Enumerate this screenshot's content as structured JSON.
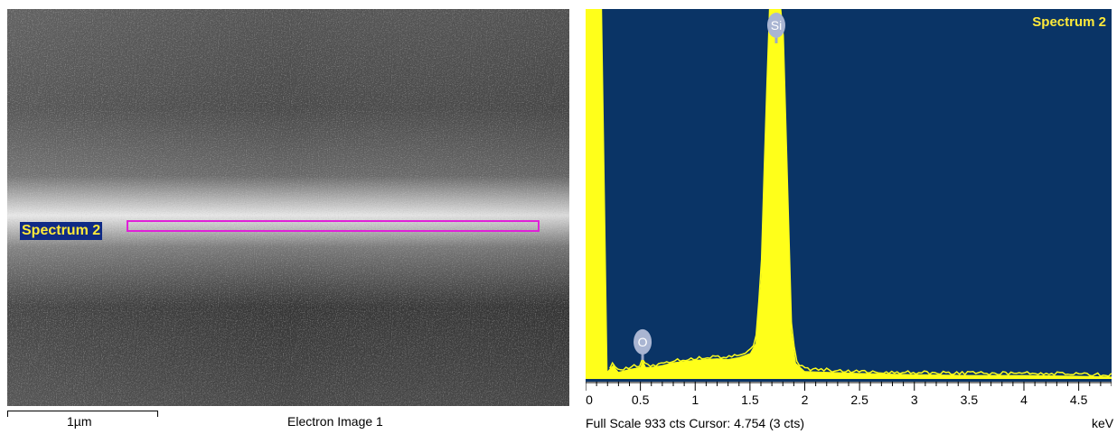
{
  "sem_image": {
    "spectrum_label": "Spectrum 2",
    "scale_bar_label": "1µm",
    "caption": "Electron Image 1",
    "region_color": "#e020d8",
    "label_bg_color": "#0f2a85",
    "label_text_color": "#ffea3a"
  },
  "spectrum": {
    "title": "Spectrum 2",
    "status": "Full Scale 933 cts Cursor: 4.754  (3 cts)",
    "unit": "keV",
    "background_color": "#0a3466",
    "fill_color": "#ffff1a",
    "peaks": [
      {
        "element": "Si",
        "energy_kev": 1.74
      },
      {
        "element": "O",
        "energy_kev": 0.52
      }
    ]
  },
  "chart_data": {
    "type": "area",
    "title": "Spectrum 2",
    "xlabel": "keV",
    "ylabel": "",
    "xlim": [
      0,
      4.8
    ],
    "ylim": [
      0,
      933
    ],
    "x_ticks": [
      "0",
      "0.5",
      "1",
      "1.5",
      "2",
      "2.5",
      "3",
      "3.5",
      "4",
      "4.5"
    ],
    "x": [
      0.0,
      0.1,
      0.15,
      0.2,
      0.25,
      0.3,
      0.4,
      0.5,
      0.52,
      0.55,
      0.6,
      0.7,
      0.8,
      0.9,
      1.0,
      1.1,
      1.2,
      1.3,
      1.4,
      1.5,
      1.55,
      1.6,
      1.65,
      1.68,
      1.7,
      1.74,
      1.78,
      1.8,
      1.84,
      1.88,
      1.92,
      2.0,
      2.2,
      2.5,
      3.0,
      3.5,
      4.0,
      4.5,
      4.8
    ],
    "values": [
      933,
      933,
      933,
      20,
      35,
      18,
      25,
      30,
      48,
      30,
      30,
      35,
      42,
      45,
      48,
      50,
      52,
      50,
      55,
      65,
      90,
      250,
      700,
      933,
      933,
      933,
      933,
      900,
      500,
      120,
      40,
      20,
      18,
      15,
      12,
      10,
      10,
      8,
      6
    ],
    "peaks": [
      {
        "label": "O",
        "x": 0.52
      },
      {
        "label": "Si",
        "x": 1.74
      }
    ]
  }
}
